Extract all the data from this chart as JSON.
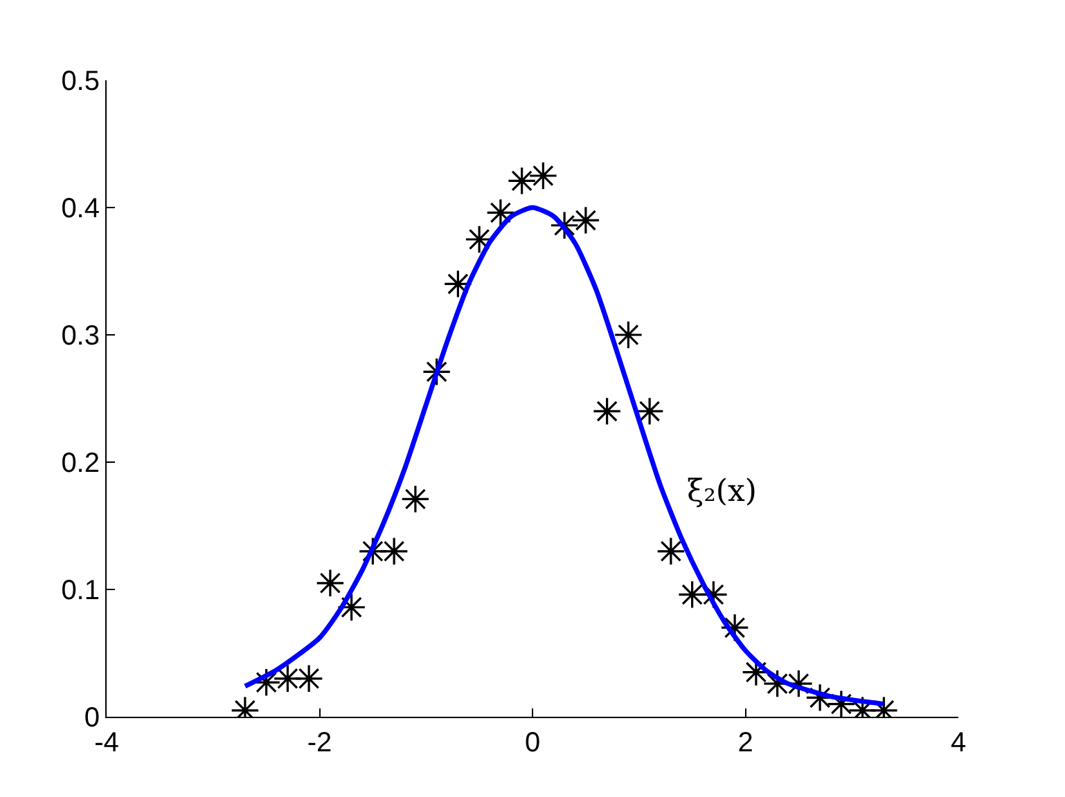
{
  "chart_data": {
    "type": "scatter",
    "xlim": [
      -4,
      4
    ],
    "xticks": [
      -4,
      -2,
      0,
      2,
      4
    ],
    "ylim": [
      0,
      0.5
    ],
    "yticks": [
      0,
      0.1,
      0.2,
      0.3,
      0.4,
      0.5
    ],
    "grid": false,
    "series": [
      {
        "marker": "cross",
        "color": "#000000",
        "x": [
          -2.7,
          -2.5,
          -2.3,
          -2.1,
          -1.9,
          -1.7,
          -1.5,
          -1.3,
          -1.1,
          -0.9,
          -0.7,
          -0.5,
          -0.3,
          -0.1,
          0.1,
          0.3,
          0.5,
          0.7,
          0.9,
          1.1,
          1.3,
          1.5,
          1.7,
          1.9,
          2.1,
          2.3,
          2.5,
          2.7,
          2.9,
          3.1,
          3.3
        ],
        "values": [
          0.005,
          0.027,
          0.03,
          0.03,
          0.105,
          0.086,
          0.13,
          0.13,
          0.171,
          0.271,
          0.34,
          0.375,
          0.396,
          0.421,
          0.425,
          0.386,
          0.39,
          0.24,
          0.3,
          0.24,
          0.13,
          0.096,
          0.096,
          0.07,
          0.035,
          0.026,
          0.026,
          0.015,
          0.01,
          0.005,
          0.005
        ]
      },
      {
        "type": "line",
        "marker": "none",
        "line_style": "solid",
        "color": "#0000ff",
        "x": [
          -2.7,
          -2.4,
          -2.0,
          -1.8,
          -1.6,
          -1.4,
          -1.2,
          -1.0,
          -0.8,
          -0.6,
          -0.4,
          -0.2,
          0,
          0.2,
          0.4,
          0.6,
          0.8,
          1.0,
          1.2,
          1.4,
          1.6,
          1.8,
          2.0,
          2.2,
          2.4,
          2.8,
          3.3
        ],
        "values": [
          0.024,
          0.037,
          0.062,
          0.085,
          0.115,
          0.152,
          0.195,
          0.245,
          0.295,
          0.34,
          0.373,
          0.393,
          0.4,
          0.393,
          0.372,
          0.335,
          0.285,
          0.233,
          0.182,
          0.14,
          0.105,
          0.075,
          0.052,
          0.036,
          0.026,
          0.016,
          0.01
        ]
      }
    ],
    "annotations": [
      "ξ₂(x)"
    ]
  }
}
